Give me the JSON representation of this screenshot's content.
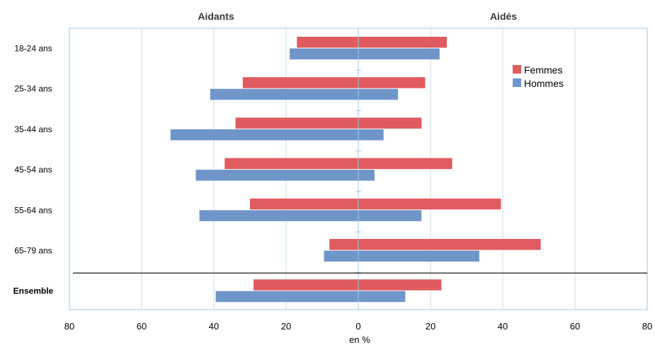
{
  "chart_data": {
    "type": "bar",
    "orientation": "horizontal-pyramid",
    "left_title": "Aidants",
    "right_title": "Aidés",
    "xlabel": "en %",
    "xlim": [
      -80,
      80
    ],
    "x_ticks": [
      "80",
      "60",
      "40",
      "20",
      "0",
      "20",
      "40",
      "60",
      "80"
    ],
    "categories": [
      "18-24 ans",
      "25-34 ans",
      "35-44 ans",
      "45-54 ans",
      "55-64 ans",
      "65-79 ans",
      "Ensemble"
    ],
    "emphasized_category": "Ensemble",
    "separator_before": "Ensemble",
    "legend_position": "top-right",
    "grid": true,
    "series": [
      {
        "name": "Femmes",
        "color": "#e05b5f",
        "aidants": [
          17,
          32,
          34,
          37,
          30,
          8,
          29
        ],
        "aides": [
          24.5,
          18.5,
          17.5,
          26,
          39.5,
          50.5,
          23
        ]
      },
      {
        "name": "Hommes",
        "color": "#6f95c9",
        "aidants": [
          19,
          41,
          52,
          45,
          44,
          9.5,
          39.5
        ],
        "aides": [
          22.5,
          11,
          7,
          4.5,
          17.5,
          33.5,
          13
        ]
      }
    ]
  }
}
